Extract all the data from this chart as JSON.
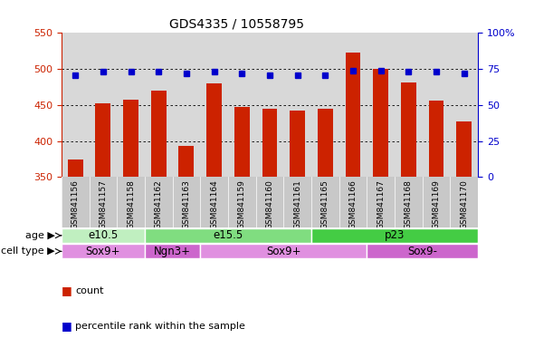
{
  "title": "GDS4335 / 10558795",
  "samples": [
    "GSM841156",
    "GSM841157",
    "GSM841158",
    "GSM841162",
    "GSM841163",
    "GSM841164",
    "GSM841159",
    "GSM841160",
    "GSM841161",
    "GSM841165",
    "GSM841166",
    "GSM841167",
    "GSM841168",
    "GSM841169",
    "GSM841170"
  ],
  "bar_values": [
    375,
    452,
    457,
    470,
    393,
    480,
    447,
    445,
    442,
    445,
    523,
    500,
    481,
    456,
    427
  ],
  "dot_values": [
    71,
    73,
    73,
    73,
    72,
    73,
    72,
    71,
    71,
    71,
    74,
    74,
    73,
    73,
    72
  ],
  "ylim_left": [
    350,
    550
  ],
  "ylim_right": [
    0,
    100
  ],
  "yticks_left": [
    350,
    400,
    450,
    500,
    550
  ],
  "yticks_right": [
    0,
    25,
    50,
    75,
    100
  ],
  "bar_color": "#cc2200",
  "dot_color": "#0000cc",
  "grid_yticks": [
    400,
    450,
    500
  ],
  "bg_color": "#d8d8d8",
  "age_groups": [
    {
      "label": "e10.5",
      "start": 0,
      "end": 3,
      "color": "#c0efc0"
    },
    {
      "label": "e15.5",
      "start": 3,
      "end": 9,
      "color": "#80dd80"
    },
    {
      "label": "p23",
      "start": 9,
      "end": 15,
      "color": "#44cc44"
    }
  ],
  "cell_groups": [
    {
      "label": "Sox9+",
      "start": 0,
      "end": 3,
      "color": "#e090e0"
    },
    {
      "label": "Ngn3+",
      "start": 3,
      "end": 5,
      "color": "#cc66cc"
    },
    {
      "label": "Sox9+",
      "start": 5,
      "end": 11,
      "color": "#e090e0"
    },
    {
      "label": "Sox9-",
      "start": 11,
      "end": 15,
      "color": "#cc66cc"
    }
  ],
  "sample_bg": "#c8c8c8",
  "tick_fontsize": 8,
  "sample_fontsize": 6.5,
  "annotation_fontsize": 8.5,
  "row_label_fontsize": 8
}
